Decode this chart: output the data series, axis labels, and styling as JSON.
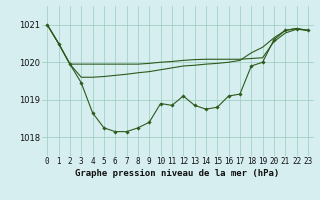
{
  "title": "Graphe pression niveau de la mer (hPa)",
  "bg_color": "#d6eef0",
  "grid_color": "#99ccbb",
  "line_color": "#2d5a1b",
  "x_labels": [
    "0",
    "1",
    "2",
    "3",
    "4",
    "5",
    "6",
    "7",
    "8",
    "9",
    "10",
    "11",
    "12",
    "13",
    "14",
    "15",
    "16",
    "17",
    "18",
    "19",
    "20",
    "21",
    "22",
    "23"
  ],
  "ylim": [
    1017.5,
    1021.5
  ],
  "yticks": [
    1018,
    1019,
    1020,
    1021
  ],
  "main_line": [
    1021.0,
    1020.5,
    1019.95,
    1019.45,
    1018.65,
    1018.25,
    1018.15,
    1018.15,
    1018.25,
    1018.4,
    1018.9,
    1018.85,
    1019.1,
    1018.85,
    1018.75,
    1018.8,
    1019.1,
    1019.15,
    1019.9,
    1020.0,
    1020.6,
    1020.85,
    1020.9,
    1020.85
  ],
  "line_flat": [
    1021.0,
    1020.5,
    1019.95,
    1019.95,
    1019.95,
    1019.95,
    1019.95,
    1019.95,
    1019.95,
    1019.97,
    1020.0,
    1020.02,
    1020.05,
    1020.07,
    1020.08,
    1020.08,
    1020.08,
    1020.08,
    1020.1,
    1020.12,
    1020.55,
    1020.78,
    1020.88,
    1020.85
  ],
  "line_diag": [
    1021.0,
    1020.5,
    1019.95,
    1019.6,
    1019.6,
    1019.62,
    1019.65,
    1019.68,
    1019.72,
    1019.75,
    1019.8,
    1019.85,
    1019.9,
    1019.92,
    1019.95,
    1019.97,
    1020.0,
    1020.05,
    1020.25,
    1020.4,
    1020.65,
    1020.85,
    1020.9,
    1020.85
  ],
  "title_fontsize": 6.5,
  "tick_fontsize": 5.5,
  "ytick_fontsize": 6.0
}
